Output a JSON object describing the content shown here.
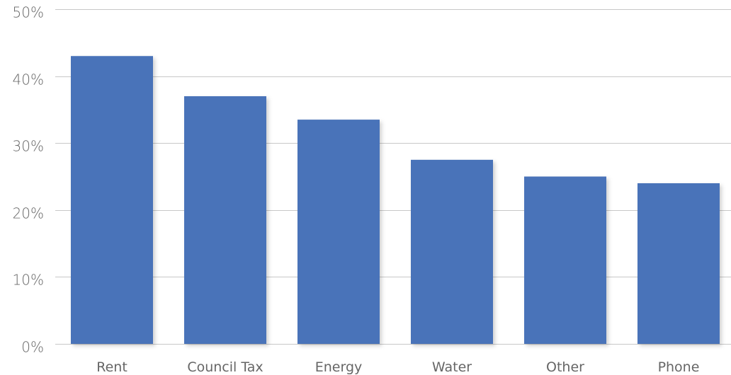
{
  "chart_data": {
    "type": "bar",
    "title": "",
    "xlabel": "",
    "ylabel": "",
    "categories": [
      "Rent",
      "Council Tax",
      "Energy",
      "Water",
      "Other",
      "Phone"
    ],
    "values": [
      43,
      37,
      33.5,
      27.5,
      25,
      24
    ],
    "ylim": [
      0,
      50
    ],
    "yticks": [
      0,
      10,
      20,
      30,
      40,
      50
    ],
    "ytick_labels": [
      "0%",
      "10%",
      "20%",
      "30%",
      "40%",
      "50%"
    ],
    "grid": true,
    "legend": "none",
    "colors": {
      "bar": "#4873b9",
      "grid": "#c8c8c8",
      "text": "#666666"
    }
  }
}
